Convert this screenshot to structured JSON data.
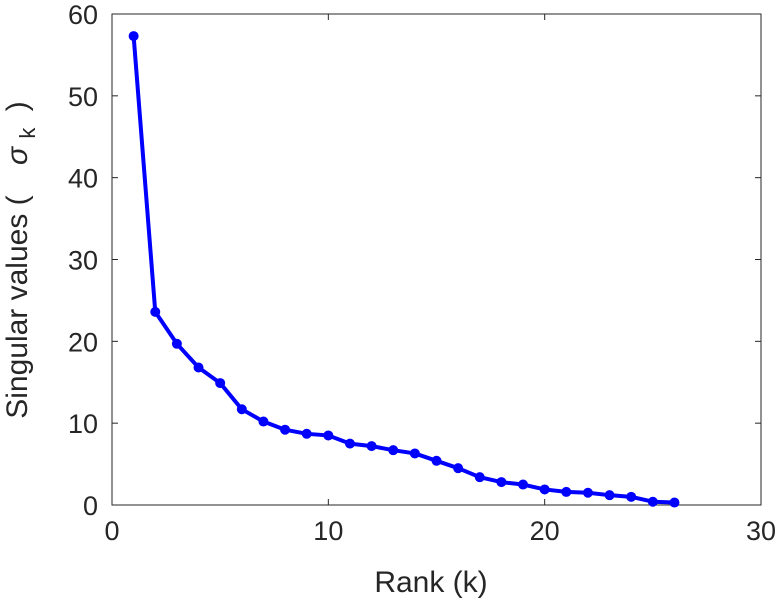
{
  "chart_data": {
    "type": "line",
    "title": "",
    "xlabel": "Rank (k)",
    "ylabel": {
      "main": "Singular values (",
      "symbol": "σ",
      "subscript": "k",
      "close": ")"
    },
    "xlim": [
      0,
      30
    ],
    "ylim": [
      0,
      60
    ],
    "xticks": [
      0,
      10,
      20,
      30
    ],
    "yticks": [
      0,
      10,
      20,
      30,
      40,
      50,
      60
    ],
    "grid": false,
    "series": [
      {
        "color": "#0000ff",
        "marker": "filled-circle",
        "x": [
          1,
          2,
          3,
          4,
          5,
          6,
          7,
          8,
          9,
          10,
          11,
          12,
          13,
          14,
          15,
          16,
          17,
          18,
          19,
          20,
          21,
          22,
          23,
          24,
          25,
          26
        ],
        "y": [
          57.3,
          23.6,
          19.7,
          16.8,
          14.9,
          11.7,
          10.2,
          9.2,
          8.7,
          8.5,
          7.5,
          7.2,
          6.7,
          6.3,
          5.4,
          4.5,
          3.4,
          2.8,
          2.5,
          1.9,
          1.6,
          1.5,
          1.2,
          1.0,
          0.4,
          0.3
        ]
      }
    ]
  }
}
